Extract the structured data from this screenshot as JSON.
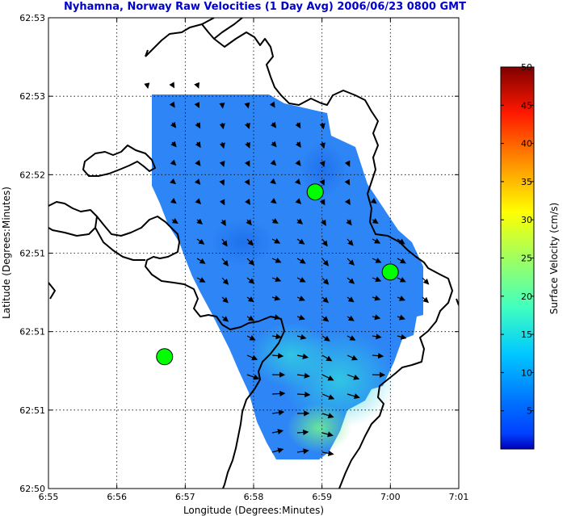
{
  "chart_data": {
    "type": "heatmap",
    "title": "Nyhamna, Norway Raw Velocities (1 Day Avg) 2006/06/23 0800 GMT",
    "xlabel": "Longitude (Degrees:Minutes)",
    "ylabel": "Latitude (Degrees:Minutes)",
    "x_ticks": [
      "6:55",
      "6:56",
      "6:57",
      "6:58",
      "6:59",
      "7:00",
      "7:01"
    ],
    "y_ticks": [
      "62:53",
      "62:53",
      "62:52",
      "62:51",
      "62:51",
      "62:51",
      "62:50"
    ],
    "xlim": [
      6.9167,
      7.0167
    ],
    "grid": true,
    "colorbar": {
      "label": "Surface Velocity (cm/s)",
      "min": 0,
      "max": 50,
      "ticks": [
        "5",
        "10",
        "15",
        "20",
        "25",
        "30",
        "35",
        "40",
        "45",
        "50"
      ],
      "colormap": "jet"
    },
    "radar_sites": [
      {
        "lon": 6.945,
        "lat_frac": 0.72,
        "color": "#00ff00"
      },
      {
        "lon": 6.9817,
        "lat_frac": 0.37,
        "color": "#00ff00"
      },
      {
        "lon": 7.0,
        "lat_frac": 0.54,
        "color": "#00ff00"
      }
    ],
    "velocity_field": {
      "typical_speed_cm_s": 4,
      "max_speed_cm_s": 12
    }
  }
}
